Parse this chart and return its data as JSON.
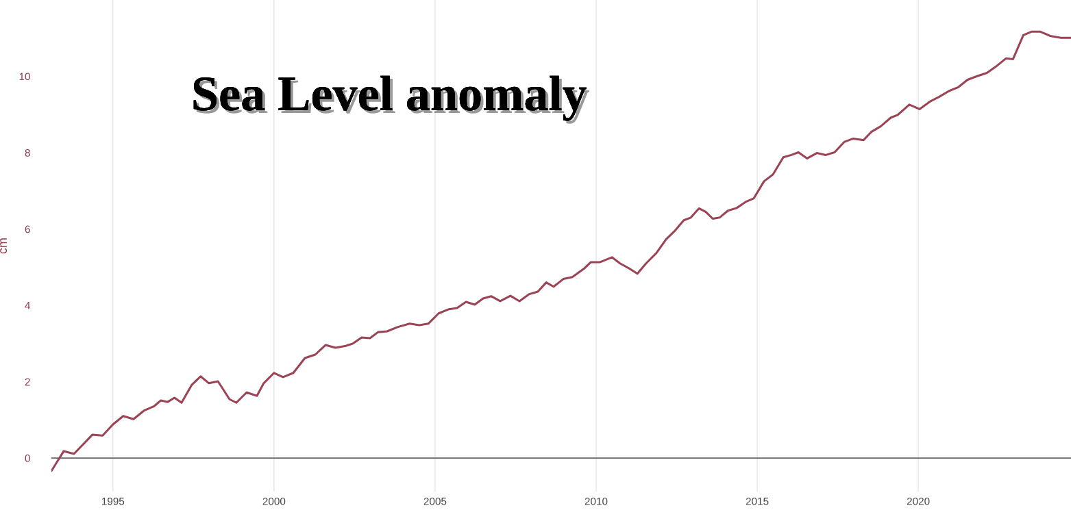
{
  "chart_data": {
    "type": "line",
    "title": "Sea Level anomaly",
    "ylabel": "cm",
    "xlim": [
      1993.09,
      2024.74
    ],
    "ylim": [
      -0.88,
      12.0
    ],
    "xticks": [
      1995,
      2000,
      2005,
      2010,
      2015,
      2020
    ],
    "yticks": [
      0,
      2,
      4,
      6,
      8,
      10
    ],
    "grid": "x",
    "legend": false,
    "marker": "none",
    "line_style": "solid",
    "ref_lines": [
      {
        "axis": "y",
        "value": 0,
        "color": "#666666"
      }
    ],
    "series": [
      {
        "color": "#9b4455",
        "x": [
          1993.09,
          1993.47,
          1993.79,
          1994.36,
          1994.68,
          1995.0,
          1995.32,
          1995.64,
          1995.96,
          1996.28,
          1996.49,
          1996.7,
          1996.91,
          1997.13,
          1997.45,
          1997.72,
          1997.98,
          1998.26,
          1998.62,
          1998.83,
          1999.15,
          1999.47,
          1999.68,
          2000.0,
          2000.28,
          2000.6,
          2000.96,
          2001.28,
          2001.6,
          2001.91,
          2002.23,
          2002.45,
          2002.72,
          2002.98,
          2003.23,
          2003.51,
          2003.83,
          2004.21,
          2004.51,
          2004.79,
          2005.11,
          2005.43,
          2005.68,
          2005.96,
          2006.23,
          2006.49,
          2006.74,
          2007.02,
          2007.34,
          2007.62,
          2007.91,
          2008.19,
          2008.45,
          2008.68,
          2008.98,
          2009.26,
          2009.62,
          2009.83,
          2010.11,
          2010.49,
          2010.74,
          2011.02,
          2011.28,
          2011.55,
          2011.87,
          2012.17,
          2012.45,
          2012.72,
          2012.94,
          2013.19,
          2013.4,
          2013.62,
          2013.83,
          2014.09,
          2014.36,
          2014.64,
          2014.89,
          2015.21,
          2015.49,
          2015.81,
          2016.06,
          2016.28,
          2016.55,
          2016.85,
          2017.13,
          2017.4,
          2017.7,
          2017.98,
          2018.3,
          2018.55,
          2018.83,
          2019.15,
          2019.36,
          2019.72,
          2020.04,
          2020.38,
          2020.64,
          2020.96,
          2021.23,
          2021.53,
          2021.81,
          2022.13,
          2022.4,
          2022.72,
          2022.94,
          2023.26,
          2023.51,
          2023.79,
          2024.09,
          2024.43,
          2024.74
        ],
        "values": [
          -0.34,
          0.18,
          0.11,
          0.61,
          0.59,
          0.88,
          1.1,
          1.02,
          1.24,
          1.36,
          1.51,
          1.47,
          1.58,
          1.45,
          1.92,
          2.14,
          1.96,
          2.01,
          1.54,
          1.45,
          1.72,
          1.63,
          1.96,
          2.23,
          2.12,
          2.23,
          2.62,
          2.71,
          2.96,
          2.89,
          2.94,
          3.0,
          3.16,
          3.14,
          3.3,
          3.32,
          3.43,
          3.52,
          3.48,
          3.52,
          3.79,
          3.9,
          3.93,
          4.09,
          4.02,
          4.18,
          4.24,
          4.11,
          4.25,
          4.11,
          4.29,
          4.36,
          4.6,
          4.49,
          4.69,
          4.74,
          4.96,
          5.13,
          5.13,
          5.26,
          5.1,
          4.97,
          4.83,
          5.1,
          5.37,
          5.73,
          5.96,
          6.23,
          6.3,
          6.54,
          6.45,
          6.27,
          6.3,
          6.48,
          6.55,
          6.71,
          6.8,
          7.25,
          7.43,
          7.88,
          7.94,
          8.01,
          7.85,
          7.99,
          7.94,
          8.01,
          8.28,
          8.37,
          8.33,
          8.55,
          8.69,
          8.92,
          8.99,
          9.26,
          9.14,
          9.35,
          9.46,
          9.62,
          9.71,
          9.91,
          10.0,
          10.09,
          10.25,
          10.47,
          10.45,
          11.08,
          11.17,
          11.17,
          11.06,
          11.01,
          11.01
        ]
      }
    ]
  }
}
